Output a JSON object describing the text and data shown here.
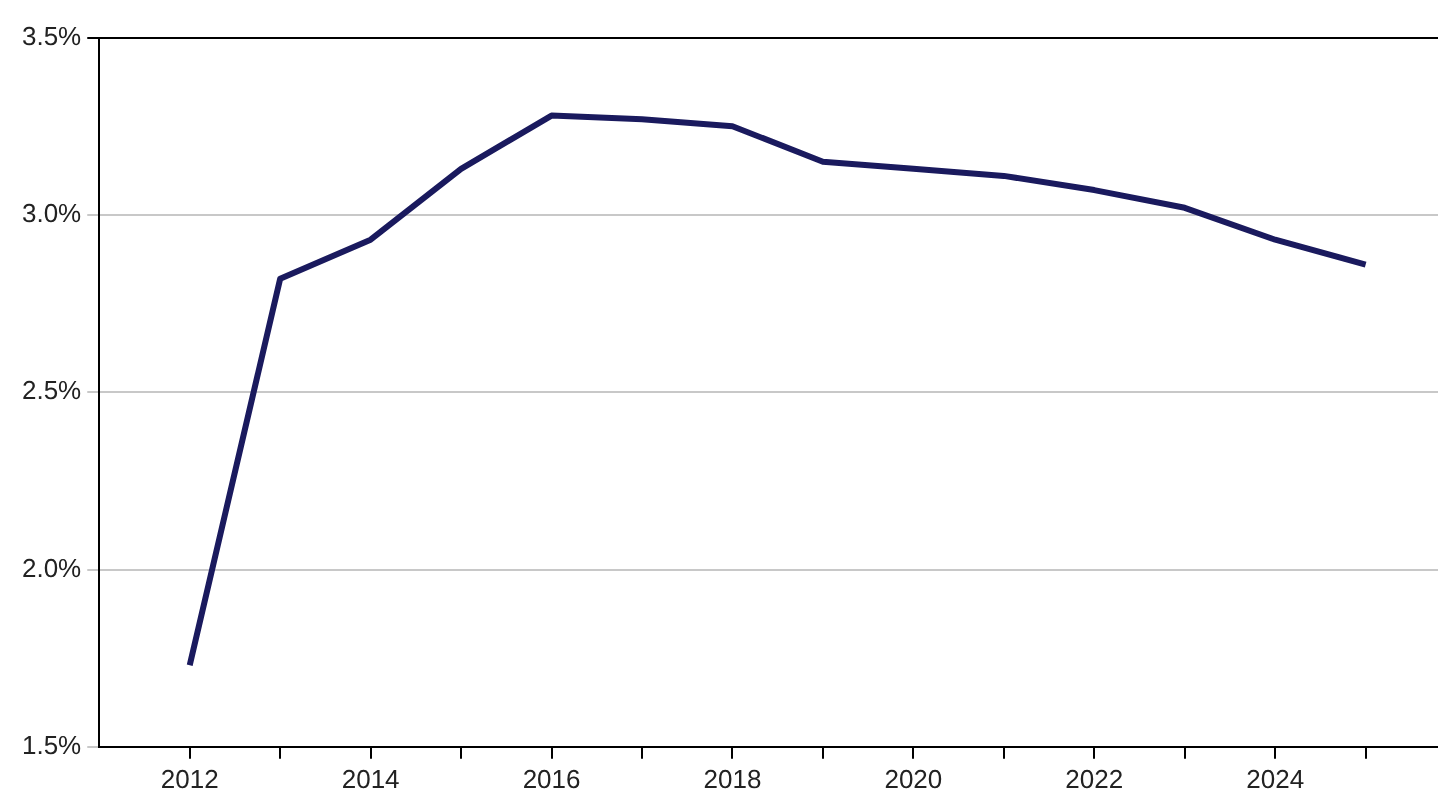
{
  "chart_data": {
    "type": "line",
    "x": [
      2012,
      2013,
      2014,
      2015,
      2016,
      2017,
      2018,
      2019,
      2020,
      2021,
      2022,
      2023,
      2024,
      2025
    ],
    "series": [
      {
        "color": "#1a1a5e",
        "values": [
          1.73,
          2.82,
          2.93,
          3.13,
          3.28,
          3.27,
          3.25,
          3.15,
          3.13,
          3.11,
          3.07,
          3.02,
          2.93,
          2.86
        ]
      }
    ],
    "xlim": [
      2011,
      2025.8
    ],
    "xticks": [
      2012,
      {
        "value": 2013,
        "label": null
      },
      2014,
      {
        "value": 2015,
        "label": null
      },
      2016,
      {
        "value": 2017,
        "label": null
      },
      2018,
      {
        "value": 2019,
        "label": null
      },
      2020,
      {
        "value": 2021,
        "label": null
      },
      2022,
      {
        "value": 2023,
        "label": null
      },
      2024,
      {
        "value": 2025,
        "label": null
      }
    ],
    "ylim": [
      1.5,
      3.5
    ],
    "yticks": [
      {
        "value": 1.5,
        "label": "1.5%"
      },
      {
        "value": 2.0,
        "label": "2.0%"
      },
      {
        "value": 2.5,
        "label": "2.5%"
      },
      {
        "value": 3.0,
        "label": "3.0%"
      },
      {
        "value": 3.5,
        "label": "3.5%"
      }
    ],
    "grid": "y",
    "legend": false,
    "marker": "none",
    "line_style": "solid"
  }
}
